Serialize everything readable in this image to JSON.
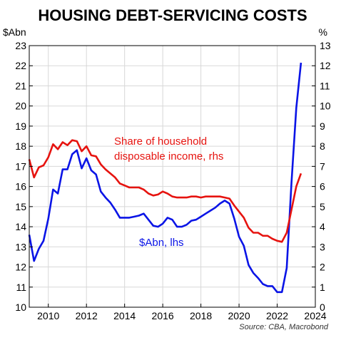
{
  "title": "HOUSING DEBT-SERVICING COSTS",
  "left_unit": "$Abn",
  "right_unit": "%",
  "source": "Source: CBA, Macrobond",
  "colors": {
    "lhs": "#0a14e6",
    "rhs": "#e6130f",
    "frame": "#000000",
    "grid": "#d8d8d8"
  },
  "chart_data": {
    "type": "line",
    "title": "HOUSING DEBT-SERVICING COSTS",
    "grid": true,
    "x_ticks": [
      2010,
      2012,
      2014,
      2016,
      2018,
      2020,
      2022,
      2024
    ],
    "xlim": [
      2009,
      2024
    ],
    "y_left": {
      "label": "$Abn",
      "lim": [
        10,
        23
      ],
      "ticks": [
        10,
        11,
        12,
        13,
        14,
        15,
        16,
        17,
        18,
        19,
        20,
        21,
        22,
        23
      ]
    },
    "y_right": {
      "label": "%",
      "lim": [
        0,
        13
      ],
      "ticks": [
        0,
        1,
        2,
        3,
        4,
        5,
        6,
        7,
        8,
        9,
        10,
        11,
        12,
        13
      ]
    },
    "annotations": [
      {
        "text": "Share of household disposable income, rhs",
        "lines": [
          "Share of household",
          "disposable income, rhs"
        ],
        "color": "#e6130f"
      },
      {
        "text": "$Abn, lhs",
        "lines": [
          "$Abn, lhs"
        ],
        "color": "#0a14e6"
      }
    ],
    "series": [
      {
        "name": "$Abn, lhs",
        "axis": "left",
        "color": "#0a14e6",
        "points": [
          [
            2009.0,
            13.6
          ],
          [
            2009.25,
            12.3
          ],
          [
            2009.5,
            12.9
          ],
          [
            2009.75,
            13.3
          ],
          [
            2010.0,
            14.4
          ],
          [
            2010.25,
            15.85
          ],
          [
            2010.5,
            15.65
          ],
          [
            2010.75,
            16.85
          ],
          [
            2011.0,
            16.85
          ],
          [
            2011.25,
            17.6
          ],
          [
            2011.5,
            17.8
          ],
          [
            2011.75,
            16.9
          ],
          [
            2012.0,
            17.4
          ],
          [
            2012.25,
            16.8
          ],
          [
            2012.5,
            16.6
          ],
          [
            2012.75,
            15.75
          ],
          [
            2013.0,
            15.45
          ],
          [
            2013.25,
            15.2
          ],
          [
            2013.5,
            14.85
          ],
          [
            2013.75,
            14.45
          ],
          [
            2014.0,
            14.45
          ],
          [
            2014.25,
            14.45
          ],
          [
            2014.5,
            14.5
          ],
          [
            2014.75,
            14.55
          ],
          [
            2015.0,
            14.65
          ],
          [
            2015.25,
            14.35
          ],
          [
            2015.5,
            14.05
          ],
          [
            2015.75,
            14.0
          ],
          [
            2016.0,
            14.15
          ],
          [
            2016.25,
            14.45
          ],
          [
            2016.5,
            14.35
          ],
          [
            2016.75,
            14.0
          ],
          [
            2017.0,
            14.0
          ],
          [
            2017.25,
            14.1
          ],
          [
            2017.5,
            14.3
          ],
          [
            2017.75,
            14.35
          ],
          [
            2018.0,
            14.5
          ],
          [
            2018.25,
            14.65
          ],
          [
            2018.5,
            14.8
          ],
          [
            2018.75,
            14.95
          ],
          [
            2019.0,
            15.15
          ],
          [
            2019.25,
            15.3
          ],
          [
            2019.5,
            15.15
          ],
          [
            2019.75,
            14.4
          ],
          [
            2020.0,
            13.5
          ],
          [
            2020.25,
            13.05
          ],
          [
            2020.5,
            12.1
          ],
          [
            2020.75,
            11.7
          ],
          [
            2021.0,
            11.45
          ],
          [
            2021.25,
            11.15
          ],
          [
            2021.5,
            11.05
          ],
          [
            2021.75,
            11.05
          ],
          [
            2022.0,
            10.75
          ],
          [
            2022.25,
            10.75
          ],
          [
            2022.5,
            11.95
          ],
          [
            2022.75,
            16.2
          ],
          [
            2023.0,
            19.9
          ],
          [
            2023.25,
            22.15
          ]
        ]
      },
      {
        "name": "Share of household disposable income, rhs",
        "axis": "right",
        "color": "#e6130f",
        "points": [
          [
            2009.0,
            7.35
          ],
          [
            2009.25,
            6.45
          ],
          [
            2009.5,
            6.95
          ],
          [
            2009.75,
            7.05
          ],
          [
            2010.0,
            7.45
          ],
          [
            2010.25,
            8.1
          ],
          [
            2010.5,
            7.85
          ],
          [
            2010.75,
            8.2
          ],
          [
            2011.0,
            8.05
          ],
          [
            2011.25,
            8.3
          ],
          [
            2011.5,
            8.25
          ],
          [
            2011.75,
            7.75
          ],
          [
            2012.0,
            8.0
          ],
          [
            2012.25,
            7.55
          ],
          [
            2012.5,
            7.5
          ],
          [
            2012.75,
            7.1
          ],
          [
            2013.0,
            6.85
          ],
          [
            2013.25,
            6.65
          ],
          [
            2013.5,
            6.45
          ],
          [
            2013.75,
            6.15
          ],
          [
            2014.0,
            6.05
          ],
          [
            2014.25,
            5.95
          ],
          [
            2014.5,
            5.95
          ],
          [
            2014.75,
            5.95
          ],
          [
            2015.0,
            5.85
          ],
          [
            2015.25,
            5.65
          ],
          [
            2015.5,
            5.55
          ],
          [
            2015.75,
            5.6
          ],
          [
            2016.0,
            5.75
          ],
          [
            2016.25,
            5.65
          ],
          [
            2016.5,
            5.5
          ],
          [
            2016.75,
            5.45
          ],
          [
            2017.0,
            5.45
          ],
          [
            2017.25,
            5.45
          ],
          [
            2017.5,
            5.5
          ],
          [
            2017.75,
            5.5
          ],
          [
            2018.0,
            5.45
          ],
          [
            2018.25,
            5.5
          ],
          [
            2018.5,
            5.5
          ],
          [
            2018.75,
            5.5
          ],
          [
            2019.0,
            5.5
          ],
          [
            2019.25,
            5.45
          ],
          [
            2019.5,
            5.4
          ],
          [
            2019.75,
            5.05
          ],
          [
            2020.0,
            4.75
          ],
          [
            2020.25,
            4.45
          ],
          [
            2020.5,
            3.95
          ],
          [
            2020.75,
            3.7
          ],
          [
            2021.0,
            3.7
          ],
          [
            2021.25,
            3.55
          ],
          [
            2021.5,
            3.55
          ],
          [
            2021.75,
            3.4
          ],
          [
            2022.0,
            3.3
          ],
          [
            2022.25,
            3.25
          ],
          [
            2022.5,
            3.7
          ],
          [
            2022.75,
            4.85
          ],
          [
            2023.0,
            6.0
          ],
          [
            2023.25,
            6.65
          ]
        ]
      }
    ]
  }
}
